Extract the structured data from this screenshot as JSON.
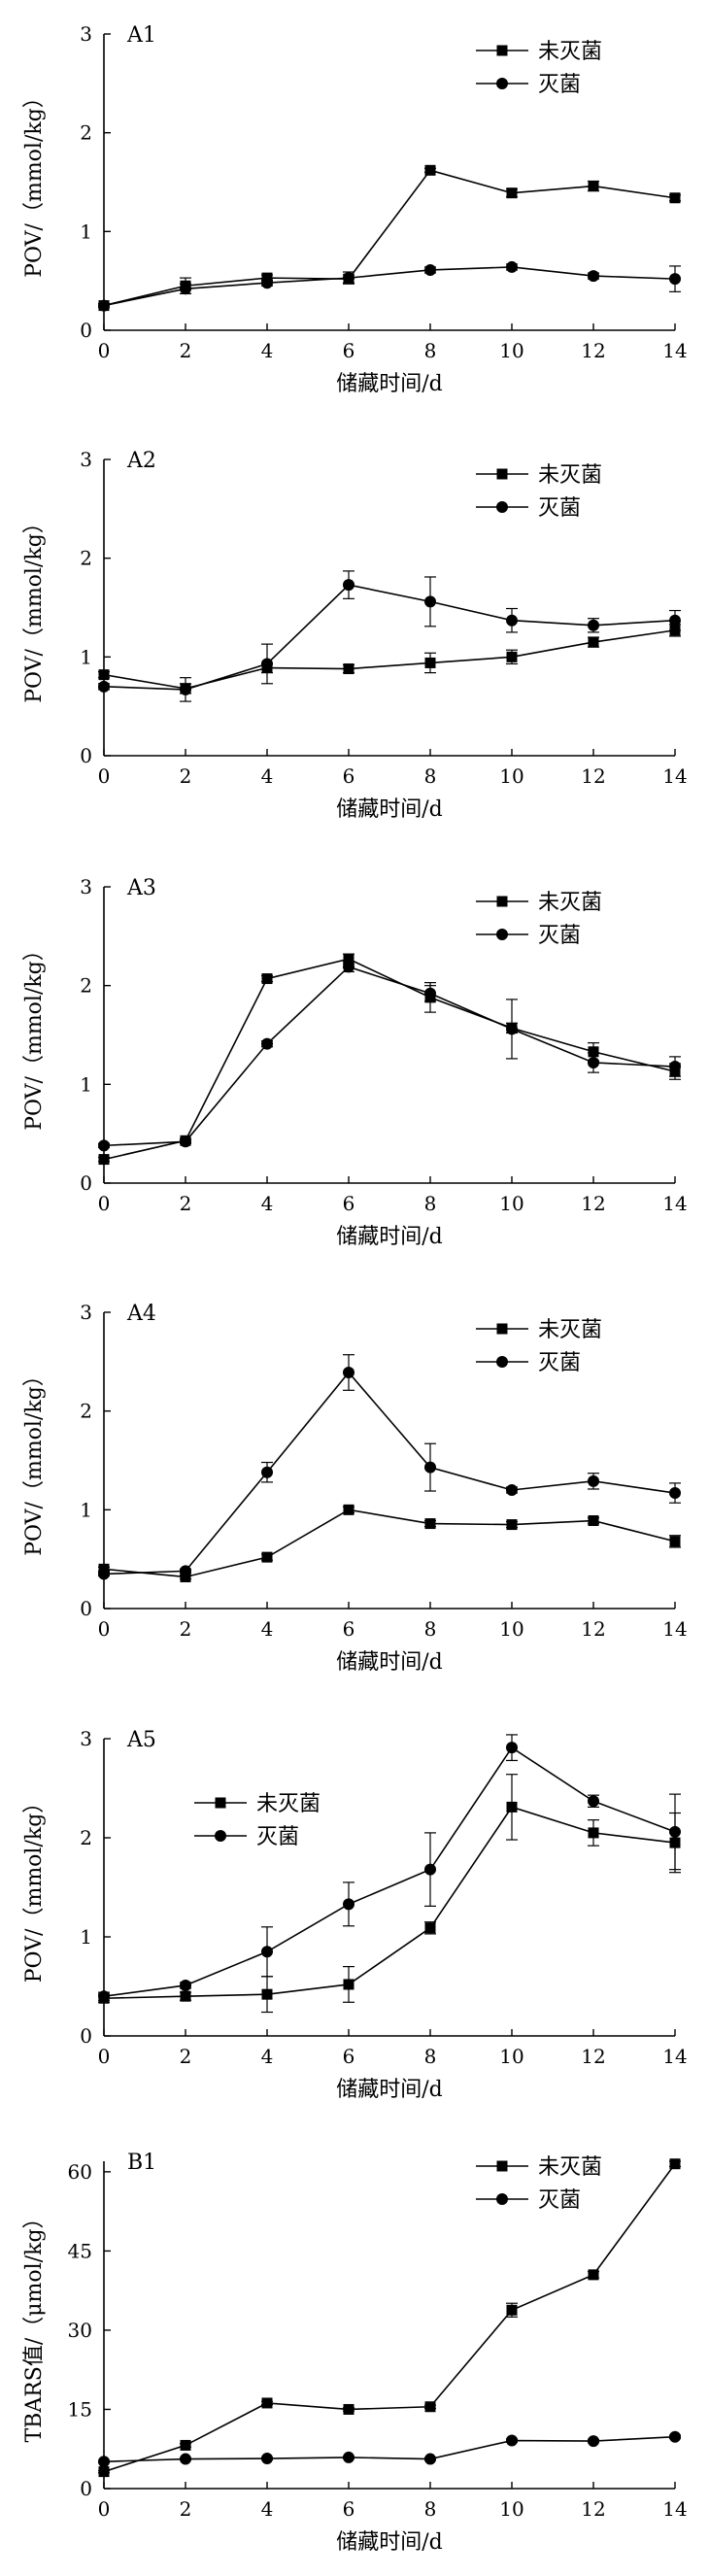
{
  "chart_data": [
    {
      "type": "line",
      "panel_label": "A1",
      "xlabel": "储藏时间/d",
      "ylabel": "POV/（mmol/kg）",
      "x": [
        0,
        2,
        4,
        6,
        8,
        10,
        12,
        14
      ],
      "xlim": [
        0,
        14
      ],
      "ylim": [
        0,
        3
      ],
      "yticks": [
        0,
        1,
        2,
        3
      ],
      "legend_position": "top-right",
      "series": [
        {
          "name": "未灭菌",
          "marker": "square",
          "values": [
            0.25,
            0.45,
            0.53,
            0.52,
            1.62,
            1.39,
            1.46,
            1.34
          ],
          "errors": [
            0.02,
            0.08,
            0.03,
            0.04,
            0.02,
            0.04,
            0.05,
            0.03
          ]
        },
        {
          "name": "灭菌",
          "marker": "circle",
          "values": [
            0.25,
            0.42,
            0.48,
            0.53,
            0.61,
            0.64,
            0.55,
            0.52
          ],
          "errors": [
            0.02,
            0.05,
            0.03,
            0.06,
            0.03,
            0.03,
            0.03,
            0.13
          ]
        }
      ]
    },
    {
      "type": "line",
      "panel_label": "A2",
      "xlabel": "储藏时间/d",
      "ylabel": "POV/（mmol/kg）",
      "x": [
        0,
        2,
        4,
        6,
        8,
        10,
        12,
        14
      ],
      "xlim": [
        0,
        14
      ],
      "ylim": [
        0,
        3
      ],
      "yticks": [
        0,
        1,
        2,
        3
      ],
      "legend_position": "top-right",
      "series": [
        {
          "name": "未灭菌",
          "marker": "square",
          "values": [
            0.82,
            0.68,
            0.89,
            0.88,
            0.94,
            1.0,
            1.15,
            1.27
          ],
          "errors": [
            0.03,
            0.05,
            0.05,
            0.04,
            0.1,
            0.07,
            0.05,
            0.06
          ]
        },
        {
          "name": "灭菌",
          "marker": "circle",
          "values": [
            0.7,
            0.67,
            0.93,
            1.73,
            1.56,
            1.37,
            1.32,
            1.37
          ],
          "errors": [
            0.03,
            0.12,
            0.2,
            0.14,
            0.25,
            0.12,
            0.07,
            0.1
          ]
        }
      ]
    },
    {
      "type": "line",
      "panel_label": "A3",
      "xlabel": "储藏时间/d",
      "ylabel": "POV/（mmol/kg）",
      "x": [
        0,
        2,
        4,
        6,
        8,
        10,
        12,
        14
      ],
      "xlim": [
        0,
        14
      ],
      "ylim": [
        0,
        3
      ],
      "yticks": [
        0,
        1,
        2,
        3
      ],
      "legend_position": "top-right",
      "series": [
        {
          "name": "未灭菌",
          "marker": "square",
          "values": [
            0.24,
            0.43,
            2.07,
            2.27,
            1.88,
            1.57,
            1.33,
            1.13
          ],
          "errors": [
            0.02,
            0.02,
            0.03,
            0.05,
            0.15,
            0.05,
            0.09,
            0.08
          ]
        },
        {
          "name": "灭菌",
          "marker": "circle",
          "values": [
            0.38,
            0.42,
            1.41,
            2.19,
            1.92,
            1.56,
            1.22,
            1.18
          ],
          "errors": [
            0.02,
            0.02,
            0.03,
            0.05,
            0.08,
            0.3,
            0.1,
            0.1
          ]
        }
      ]
    },
    {
      "type": "line",
      "panel_label": "A4",
      "xlabel": "储藏时间/d",
      "ylabel": "POV/（mmol/kg）",
      "x": [
        0,
        2,
        4,
        6,
        8,
        10,
        12,
        14
      ],
      "xlim": [
        0,
        14
      ],
      "ylim": [
        0,
        3
      ],
      "yticks": [
        0,
        1,
        2,
        3
      ],
      "legend_position": "top-right",
      "series": [
        {
          "name": "未灭菌",
          "marker": "square",
          "values": [
            0.4,
            0.32,
            0.52,
            1.0,
            0.86,
            0.85,
            0.89,
            0.68
          ],
          "errors": [
            0.02,
            0.02,
            0.03,
            0.03,
            0.03,
            0.03,
            0.03,
            0.06
          ]
        },
        {
          "name": "灭菌",
          "marker": "circle",
          "values": [
            0.35,
            0.38,
            1.38,
            2.39,
            1.43,
            1.2,
            1.29,
            1.17
          ],
          "errors": [
            0.02,
            0.02,
            0.1,
            0.18,
            0.24,
            0.03,
            0.08,
            0.1
          ]
        }
      ]
    },
    {
      "type": "line",
      "panel_label": "A5",
      "xlabel": "储藏时间/d",
      "ylabel": "POV/（mmol/kg）",
      "x": [
        0,
        2,
        4,
        6,
        8,
        10,
        12,
        14
      ],
      "xlim": [
        0,
        14
      ],
      "ylim": [
        0,
        3
      ],
      "yticks": [
        0,
        1,
        2,
        3
      ],
      "legend_position": "top-left",
      "series": [
        {
          "name": "未灭菌",
          "marker": "square",
          "values": [
            0.38,
            0.4,
            0.42,
            0.52,
            1.09,
            2.31,
            2.05,
            1.95
          ],
          "errors": [
            0.04,
            0.04,
            0.18,
            0.18,
            0.06,
            0.33,
            0.13,
            0.3
          ]
        },
        {
          "name": "灭菌",
          "marker": "circle",
          "values": [
            0.4,
            0.51,
            0.85,
            1.33,
            1.68,
            2.91,
            2.37,
            2.06
          ],
          "errors": [
            0.04,
            0.03,
            0.25,
            0.22,
            0.37,
            0.13,
            0.06,
            0.38
          ]
        }
      ]
    },
    {
      "type": "line",
      "panel_label": "B1",
      "xlabel": "储藏时间/d",
      "ylabel": "TBARS值/（μmol/kg）",
      "x": [
        0,
        2,
        4,
        6,
        8,
        10,
        12,
        14
      ],
      "xlim": [
        0,
        14
      ],
      "ylim": [
        0,
        62
      ],
      "yticks": [
        0,
        15,
        30,
        45,
        60
      ],
      "legend_position": "top-right",
      "series": [
        {
          "name": "未灭菌",
          "marker": "square",
          "values": [
            3.2,
            8.2,
            16.2,
            15.0,
            15.5,
            33.8,
            40.5,
            61.5
          ],
          "errors": [
            0.2,
            0.3,
            0.3,
            0.3,
            0.3,
            1.3,
            0.6,
            0.5
          ]
        },
        {
          "name": "灭菌",
          "marker": "circle",
          "values": [
            5.1,
            5.6,
            5.7,
            5.9,
            5.6,
            9.1,
            9.0,
            9.8
          ],
          "errors": [
            0.2,
            0.2,
            0.2,
            0.2,
            0.2,
            0.3,
            0.3,
            0.3
          ]
        }
      ]
    }
  ]
}
